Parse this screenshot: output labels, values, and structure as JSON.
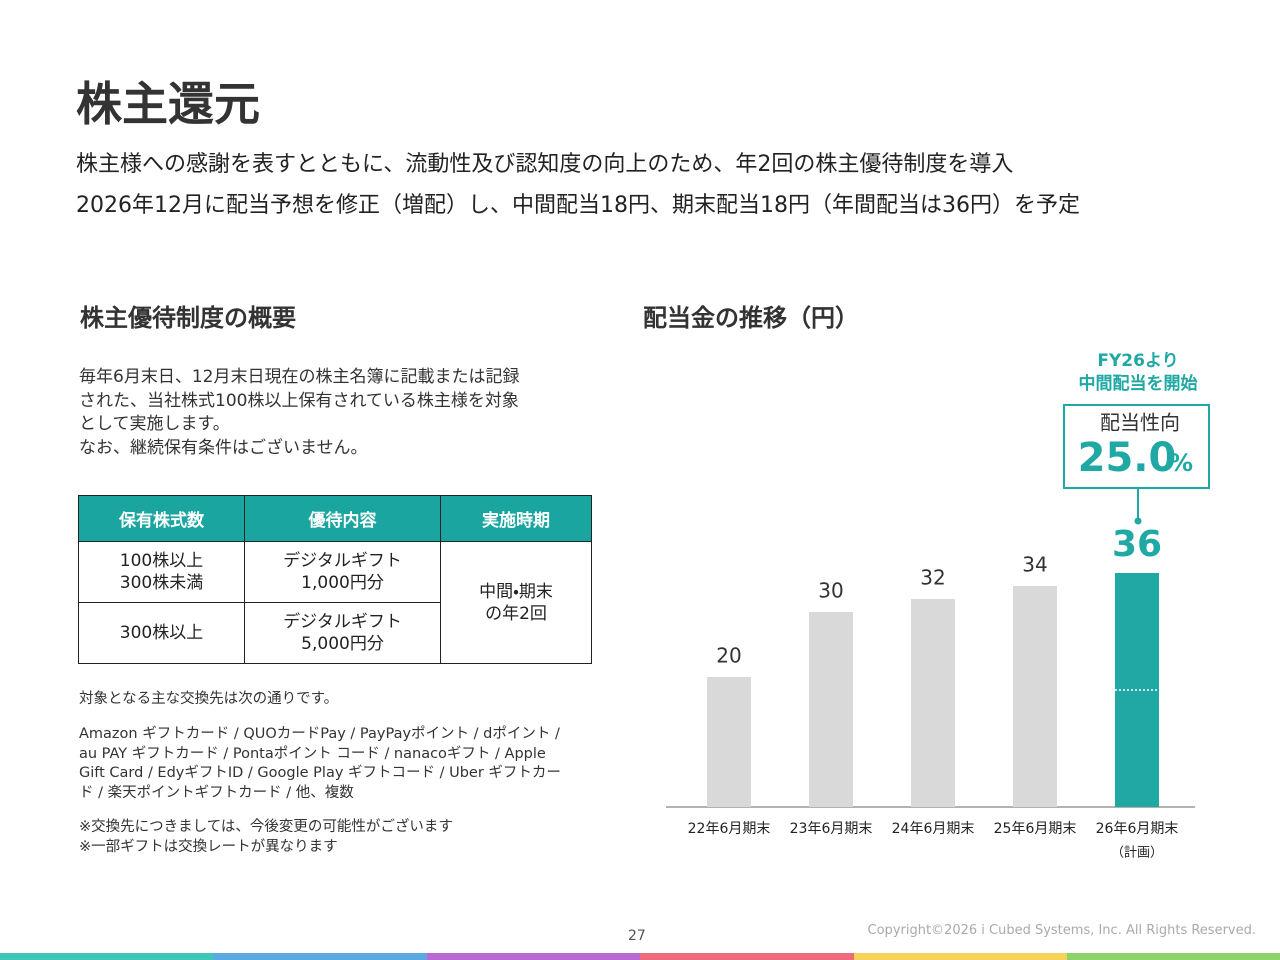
{
  "header": {
    "title": "株主還元",
    "lines": [
      "株主様への感謝を表すとともに、流動性及び認知度の向上のため、年2回の株主優待制度を導入",
      "2026年12月に配当予想を修正（増配）し、中間配当18円、期末配当18円（年間配当は36円）を予定"
    ]
  },
  "benefits": {
    "heading": "株主優待制度の概要",
    "description": [
      "毎年6月末日、12月末日現在の株主名簿に記載または記録",
      "された、当社株式100株以上保有されている株主様を対象",
      "として実施します。",
      "なお、継続保有条件はございません。"
    ],
    "table": {
      "headers": [
        "保有株式数",
        "優待内容",
        "実施時期"
      ],
      "rows": [
        [
          "100株以上\n300株未満",
          "デジタルギフト\n1,000円分",
          "中間・期末\nの年2回"
        ],
        [
          "300株以上",
          "デジタルギフト\n5,000円分"
        ]
      ]
    },
    "exchange_intro": "対象となる主な交換先は次の通りです。",
    "exchange_list": [
      "Amazon ギフトカード / QUOカードPay / PayPayポイント / dポイント /",
      "au PAY ギフトカード / Pontaポイント コード / nanacoギフト / Apple",
      "Gift Card / EdyギフトID / Google Play ギフトコード / Uber ギフトカー",
      "ド / 楽天ポイントギフトカード / 他、複数"
    ],
    "notes": [
      "※交換先につきましては、今後変更の可能性がございます",
      "※一部ギフトは交換レートが異なります"
    ]
  },
  "chart_data": {
    "type": "bar",
    "title": "配当金の推移（円）",
    "categories": [
      "22年6月期末",
      "23年6月期末",
      "24年6月期末",
      "25年6月期末",
      "26年6月期末"
    ],
    "category_sublabels": [
      null,
      null,
      null,
      null,
      "（計画）"
    ],
    "values": [
      20,
      30,
      32,
      34,
      36
    ],
    "colors": [
      "#d9d9d9",
      "#d9d9d9",
      "#d9d9d9",
      "#d9d9d9",
      "#1fa8a4"
    ],
    "interim_value": 18,
    "ylim": [
      0,
      50
    ],
    "annotation": [
      "FY26より",
      "中間配当を開始"
    ],
    "payout": {
      "label": "配当性向",
      "value": "25.0",
      "unit": "%"
    }
  },
  "footer": {
    "page": "27",
    "copyright": "Copyright©2026 i Cubed Systems, Inc. All Rights Reserved."
  }
}
